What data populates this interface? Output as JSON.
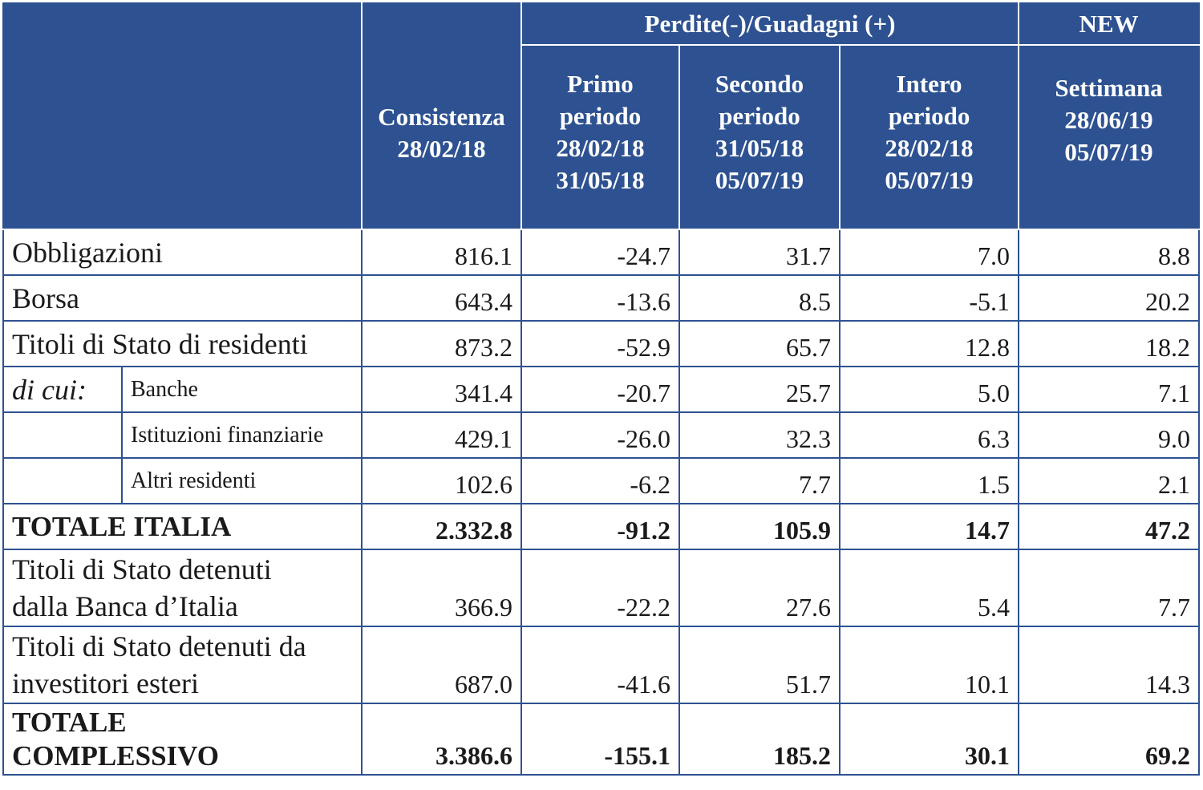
{
  "header": {
    "group_label": "Perdite(-)/Guadagni (+)",
    "new_label": "NEW",
    "columns": [
      {
        "lines": [
          "Consistenza",
          "28/02/18"
        ]
      },
      {
        "lines": [
          "Primo",
          "periodo",
          "28/02/18",
          "31/05/18"
        ]
      },
      {
        "lines": [
          "Secondo",
          "periodo",
          "31/05/18",
          "05/07/19"
        ]
      },
      {
        "lines": [
          "Intero",
          "periodo",
          "28/02/18",
          "05/07/19"
        ]
      },
      {
        "lines": [
          "Settimana",
          "28/06/19",
          "05/07/19"
        ]
      }
    ]
  },
  "rows": [
    {
      "label": "Obbligazioni",
      "values": [
        "816.1",
        "-24.7",
        "31.7",
        "7.0",
        "8.8"
      ]
    },
    {
      "label": "Borsa",
      "values": [
        "643.4",
        "-13.6",
        "8.5",
        "-5.1",
        "20.2"
      ]
    },
    {
      "label": "Titoli di Stato di residenti",
      "values": [
        "873.2",
        "-52.9",
        "65.7",
        "12.8",
        "18.2"
      ]
    },
    {
      "prefix": "di cui:",
      "label": "Banche",
      "values": [
        "341.4",
        "-20.7",
        "25.7",
        "5.0",
        "7.1"
      ]
    },
    {
      "label": "Istituzioni finanziarie",
      "values": [
        "429.1",
        "-26.0",
        "32.3",
        "6.3",
        "9.0"
      ]
    },
    {
      "label": "Altri residenti",
      "values": [
        "102.6",
        "-6.2",
        "7.7",
        "1.5",
        "2.1"
      ]
    },
    {
      "label": "TOTALE ITALIA",
      "values": [
        "2.332.8",
        "-91.2",
        "105.9",
        "14.7",
        "47.2"
      ]
    },
    {
      "label_lines": [
        "Titoli di Stato detenuti",
        "dalla Banca d’Italia"
      ],
      "values": [
        "366.9",
        "-22.2",
        "27.6",
        "5.4",
        "7.7"
      ]
    },
    {
      "label_lines": [
        "Titoli di Stato detenuti da",
        "investitori esteri"
      ],
      "values": [
        "687.0",
        "-41.6",
        "51.7",
        "10.1",
        "14.3"
      ]
    },
    {
      "label_lines": [
        "TOTALE",
        "COMPLESSIVO"
      ],
      "values": [
        "3.386.6",
        "-155.1",
        "185.2",
        "30.1",
        "69.2"
      ]
    }
  ]
}
